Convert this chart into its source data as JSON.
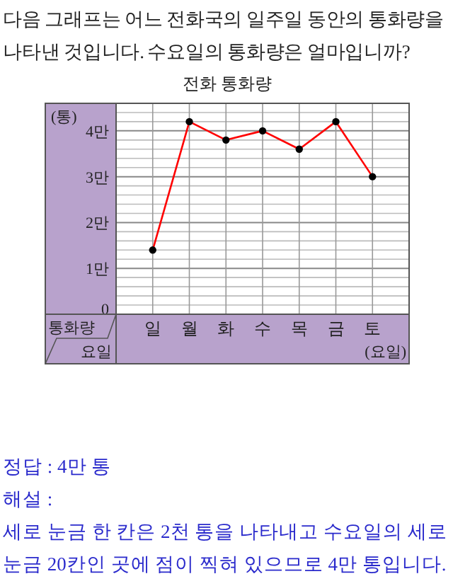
{
  "chart_data": {
    "type": "line",
    "title": "전화 통화량",
    "xlabel": "(요일)",
    "ylabel": "(통)",
    "categories": [
      "일",
      "월",
      "화",
      "수",
      "목",
      "금",
      "토"
    ],
    "series": [
      {
        "color": "#ff0000",
        "values": [
          1.4,
          4.2,
          3.8,
          4,
          3.6,
          4.2,
          3
        ]
      }
    ],
    "marker": "circle",
    "grid": true,
    "ylim": [
      0,
      4.6
    ],
    "yticks": [
      0,
      {
        "value": 0.2,
        "label": null
      },
      {
        "value": 0.4,
        "label": null
      },
      {
        "value": 0.6,
        "label": null
      },
      {
        "value": 0.8,
        "label": null
      },
      {
        "value": 1,
        "label": "1만"
      },
      {
        "value": 1.2,
        "label": null
      },
      {
        "value": 1.4,
        "label": null
      },
      {
        "value": 1.6,
        "label": null
      },
      {
        "value": 1.8,
        "label": null
      },
      {
        "value": 2,
        "label": "2만"
      },
      {
        "value": 2.2,
        "label": null
      },
      {
        "value": 2.4,
        "label": null
      },
      {
        "value": 2.6,
        "label": null
      },
      {
        "value": 2.8,
        "label": null
      },
      {
        "value": 3,
        "label": "3만"
      },
      {
        "value": 3.2,
        "label": null
      },
      {
        "value": 3.4,
        "label": null
      },
      {
        "value": 3.6,
        "label": null
      },
      {
        "value": 3.8,
        "label": null
      },
      {
        "value": 4,
        "label": "4만"
      },
      {
        "value": 4.2,
        "label": null
      },
      {
        "value": 4.4,
        "label": null
      }
    ],
    "annotations": [
      "다음 그래프는 어느 전화국의 일주일 동안의 통화량을 나타낸 것입니다. 수요일의 통화량은 얼마입니까?",
      "통화량",
      "요일",
      "정답 : 4만 통",
      "해설 :",
      "세로 눈금 한 칸은 2천 통을 나타내고 수요일의 세로 눈금 20칸인 곳에 점이 찍혀 있으므로 4만 통입니다."
    ]
  }
}
